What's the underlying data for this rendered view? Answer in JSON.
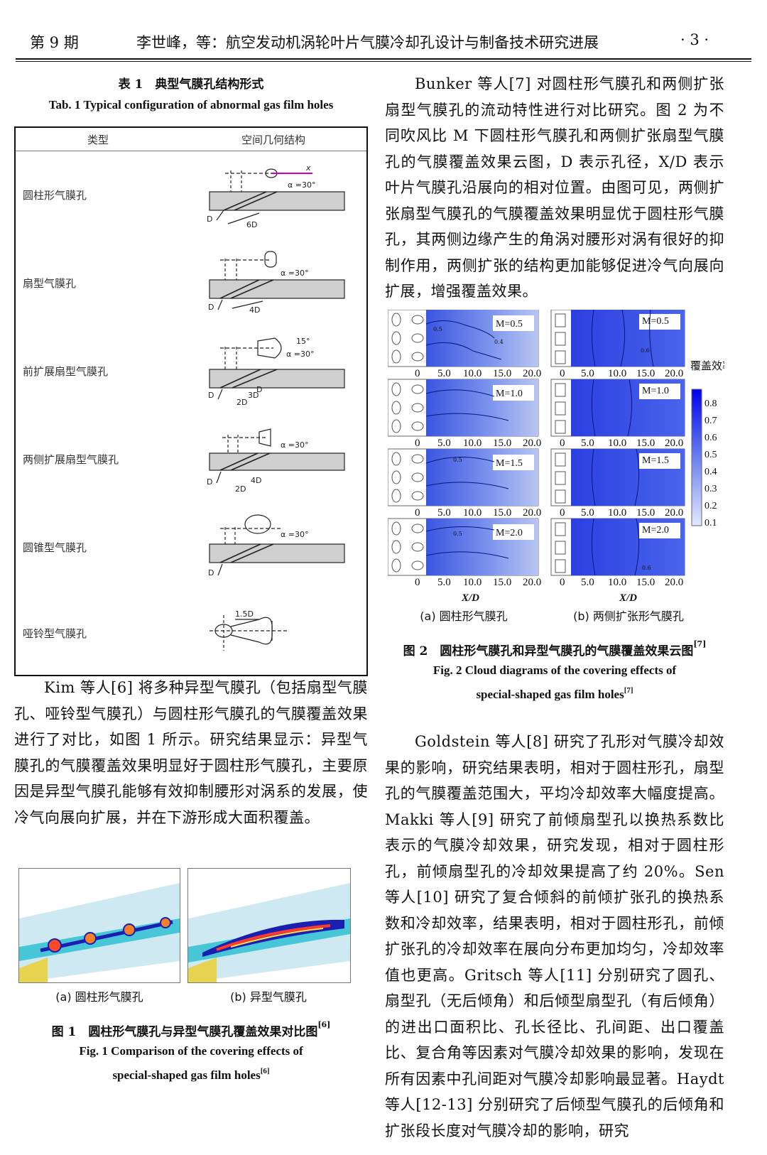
{
  "header": {
    "issue": "第 9 期",
    "title": "李世峰，等：航空发动机涡轮叶片气膜冷却孔设计与制备技术研究进展",
    "page": "· 3 ·"
  },
  "table1": {
    "caption_cn": "表 1　典型气膜孔结构形式",
    "caption_en": "Tab. 1  Typical configuration of abnormal gas film holes",
    "col_type": "类型",
    "col_geom": "空间几何结构",
    "rows": [
      {
        "name": "圆柱形气膜孔",
        "labels": [
          "x",
          "α =30°",
          "D",
          "6D"
        ]
      },
      {
        "name": "扇型气膜孔",
        "labels": [
          "α =30°",
          "D",
          "4D"
        ]
      },
      {
        "name": "前扩展扇型气膜孔",
        "labels": [
          "15°",
          "α =30°",
          "D",
          "3D",
          "2D",
          "D"
        ]
      },
      {
        "name": "两侧扩展扇型气膜孔",
        "labels": [
          "α =30°",
          "D",
          "4D",
          "2D"
        ]
      },
      {
        "name": "圆锥型气膜孔",
        "labels": [
          "α =30°",
          "D"
        ]
      },
      {
        "name": "哑铃型气膜孔",
        "labels": [
          "1.5D"
        ]
      }
    ]
  },
  "left_text": {
    "p1": "Kim 等人[6] 将多种异型气膜孔（包括扇型气膜孔、哑铃型气膜孔）与圆柱形气膜孔的气膜覆盖效果进行了对比，如图 1 所示。研究结果显示：异型气膜孔的气膜覆盖效果明显好于圆柱形气膜孔，主要原因是异型气膜孔能够有效抑制腰形对涡系的发展，使冷气向展向扩展，并在下游形成大面积覆盖。"
  },
  "figure1": {
    "sub_a": "(a) 圆柱形气膜孔",
    "sub_b": "(b) 异型气膜孔",
    "caption_cn": "图 1　圆柱形气膜孔与异型气膜孔覆盖效果对比图",
    "caption_cn_ref": "[6]",
    "caption_en_1": "Fig. 1  Comparison of the covering effects of",
    "caption_en_2": "special-shaped gas film holes",
    "caption_en_ref": "[6]"
  },
  "right_text": {
    "p1": "Bunker 等人[7] 对圆柱形气膜孔和两侧扩张扇型气膜孔的流动特性进行对比研究。图 2 为不同吹风比 M 下圆柱形气膜孔和两侧扩张扇型气膜孔的气膜覆盖效果云图，D 表示孔径，X/D 表示叶片气膜孔沿展向的相对位置。由图可见，两侧扩张扇型气膜孔的气膜覆盖效果明显优于圆柱形气膜孔，其两侧边缘产生的角涡对腰形对涡有很好的抑制作用，两侧扩张的结构更加能够促进冷气向展向扩展，增强覆盖效果。",
    "p2": "Goldstein 等人[8] 研究了孔形对气膜冷却效果的影响，研究结果表明，相对于圆柱形孔，扇型孔的气膜覆盖范围大，平均冷却效率大幅度提高。Makki 等人[9] 研究了前倾扇型孔以换热系数比表示的气膜冷却效果，研究发现，相对于圆柱形孔，前倾扇型孔的冷却效果提高了约 20%。Sen 等人[10] 研究了复合倾斜的前倾扩张孔的换热系数和冷却效率，结果表明，相对于圆柱形孔，前倾扩张孔的冷却效率在展向分布更加均匀，冷却效率值也更高。Gritsch 等人[11] 分别研究了圆孔、扇型孔（无后倾角）和后倾型扇型孔（有后倾角）的进出口面积比、孔长径比、孔间距、出口覆盖比、复合角等因素对气膜冷却效果的影响，发现在所有因素中孔间距对气膜冷却影响最显著。Haydt 等人[12-13] 分别研究了后倾型气膜孔的后倾角和扩张段长度对气膜冷却的影响，研究"
  },
  "figure2": {
    "panels_a": [
      "M=0.5",
      "M=1.0",
      "M=1.5",
      "M=2.0"
    ],
    "panels_b": [
      "M=0.5",
      "M=1.0",
      "M=1.5",
      "M=2.0"
    ],
    "xticks": [
      "0",
      "5.0",
      "10.0",
      "15.0",
      "20.0"
    ],
    "xlabel": "X/D",
    "colorbar_title": "覆盖效率",
    "colorbar_ticks": [
      "0.8",
      "0.7",
      "0.6",
      "0.5",
      "0.4",
      "0.3",
      "0.2",
      "0.1"
    ],
    "contour_labels": [
      "0.5",
      "0.4",
      "0.6"
    ],
    "sub_a": "(a) 圆柱形气膜孔",
    "sub_b": "(b) 两侧扩张形气膜孔",
    "caption_cn": "图 2　圆柱形气膜孔和异型气膜孔的气膜覆盖效果云图",
    "caption_cn_ref": "[7]",
    "caption_en_1": "Fig. 2  Cloud diagrams of the covering effects of",
    "caption_en_2": "special-shaped gas film holes",
    "caption_en_ref": "[7]"
  }
}
